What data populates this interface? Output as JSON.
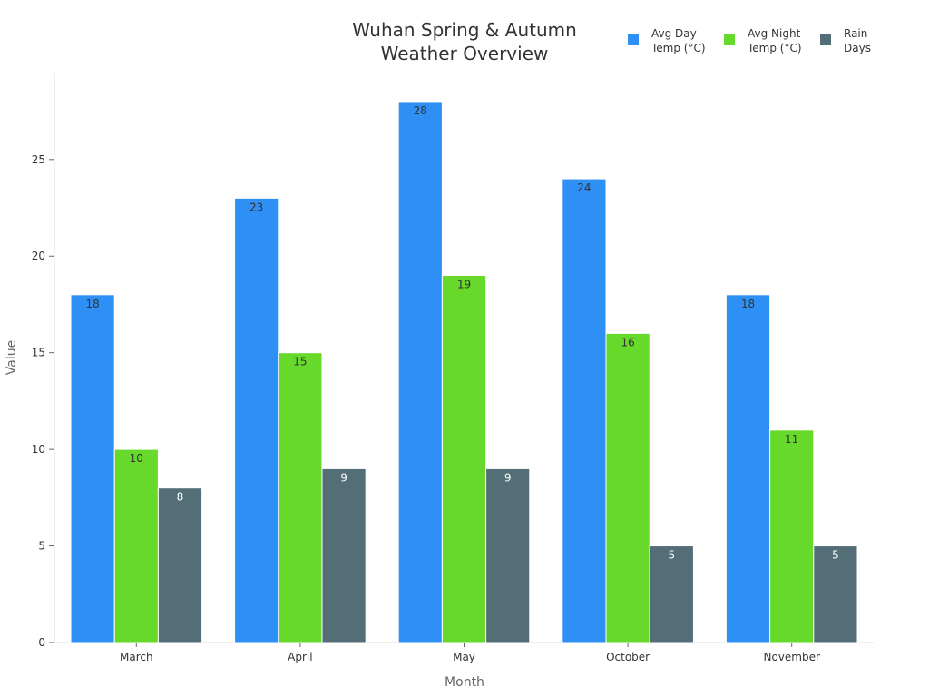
{
  "chart_data": {
    "type": "bar",
    "title_lines": [
      "Wuhan Spring & Autumn",
      "Weather Overview"
    ],
    "xlabel": "Month",
    "ylabel": "Value",
    "categories": [
      "March",
      "April",
      "May",
      "October",
      "November"
    ],
    "ylim": [
      0,
      29.5
    ],
    "yticks": [
      0,
      5,
      10,
      15,
      20,
      25
    ],
    "grid": false,
    "legend_position": "top-right",
    "series": [
      {
        "name_lines": [
          "Avg Day",
          "Temp (°C)"
        ],
        "color": "#2e90f5",
        "label_color": "#333333",
        "values": [
          18,
          23,
          28,
          24,
          18
        ]
      },
      {
        "name_lines": [
          "Avg Night",
          "Temp (°C)"
        ],
        "color": "#66d92b",
        "label_color": "#333333",
        "values": [
          10,
          15,
          19,
          16,
          11
        ]
      },
      {
        "name_lines": [
          "Rain",
          "Days"
        ],
        "color": "#546e78",
        "label_color": "#ffffff",
        "values": [
          8,
          9,
          9,
          5,
          5
        ]
      }
    ]
  }
}
